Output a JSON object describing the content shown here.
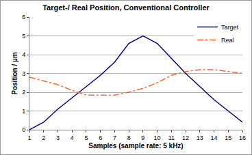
{
  "chart_data": {
    "type": "line",
    "title": "Target-/ Real Position, Conventional Controller",
    "x_label": "Samples (sample rate: 5 kHz)",
    "y_label": "Position / µm",
    "categories": [
      "1",
      "2",
      "3",
      "4",
      "5",
      "6",
      "7",
      "8",
      "9",
      "10",
      "11",
      "12",
      "13",
      "14",
      "15",
      "16"
    ],
    "series": [
      {
        "name": "Target",
        "color": "#000080",
        "line_style": "solid",
        "values": [
          0,
          0.4,
          1.1,
          1.7,
          2.3,
          2.9,
          3.6,
          4.6,
          5.0,
          4.6,
          3.8,
          3.0,
          2.3,
          1.6,
          1.0,
          0.4
        ]
      },
      {
        "name": "Real",
        "color": "#ff6633",
        "line_style": "dashdot",
        "values": [
          2.8,
          2.6,
          2.4,
          2.1,
          1.85,
          1.85,
          1.85,
          2.0,
          2.2,
          2.5,
          2.9,
          3.1,
          3.2,
          3.2,
          3.1,
          3.0
        ]
      }
    ],
    "ylim": [
      0,
      6
    ],
    "yticks": [
      0,
      1,
      2,
      3,
      4,
      5,
      6
    ],
    "grid": true,
    "legend": "top right"
  }
}
